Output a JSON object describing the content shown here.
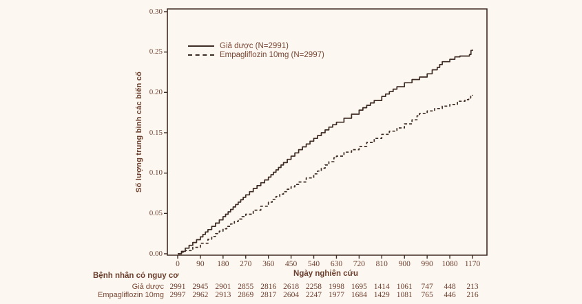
{
  "colors": {
    "background": "#fcf8f1",
    "curve": "#3e2b23",
    "axis": "#3e2b23",
    "text": "#7a4735",
    "bold_text": "#6b3d2c"
  },
  "legend": {
    "items": [
      {
        "label": "Giả dược (N=2991)",
        "style": "solid"
      },
      {
        "label": "Empagliflozin 10mg (N=2997)",
        "style": "dashed"
      }
    ]
  },
  "chart_data": {
    "type": "line",
    "title": "",
    "xlabel": "Ngày nghiên cứu",
    "ylabel": "Số lượng trung bình các biến cố",
    "xlim": [
      0,
      1170
    ],
    "ylim": [
      0,
      0.3
    ],
    "xticks": [
      0,
      90,
      180,
      270,
      360,
      450,
      540,
      630,
      720,
      810,
      900,
      990,
      1080,
      1170
    ],
    "ytick_labels": [
      "0.00",
      "0.05",
      "0.10",
      "0.15",
      "0.20",
      "0.25",
      "0.30"
    ],
    "grid": false,
    "legend_position": "inside-top-left",
    "series": [
      {
        "name": "Giả dược (N=2991)",
        "style": "solid",
        "points": [
          [
            0,
            0
          ],
          [
            15,
            0.003
          ],
          [
            30,
            0.007
          ],
          [
            60,
            0.014
          ],
          [
            90,
            0.021
          ],
          [
            120,
            0.03
          ],
          [
            150,
            0.038
          ],
          [
            180,
            0.046
          ],
          [
            210,
            0.055
          ],
          [
            240,
            0.064
          ],
          [
            270,
            0.073
          ],
          [
            300,
            0.081
          ],
          [
            330,
            0.088
          ],
          [
            360,
            0.095
          ],
          [
            390,
            0.104
          ],
          [
            420,
            0.113
          ],
          [
            450,
            0.121
          ],
          [
            480,
            0.129
          ],
          [
            510,
            0.136
          ],
          [
            540,
            0.143
          ],
          [
            570,
            0.15
          ],
          [
            600,
            0.157
          ],
          [
            630,
            0.163
          ],
          [
            660,
            0.168
          ],
          [
            690,
            0.173
          ],
          [
            720,
            0.178
          ],
          [
            750,
            0.184
          ],
          [
            780,
            0.19
          ],
          [
            810,
            0.195
          ],
          [
            840,
            0.201
          ],
          [
            870,
            0.207
          ],
          [
            900,
            0.212
          ],
          [
            930,
            0.216
          ],
          [
            960,
            0.219
          ],
          [
            990,
            0.223
          ],
          [
            1010,
            0.228
          ],
          [
            1030,
            0.231
          ],
          [
            1050,
            0.238
          ],
          [
            1080,
            0.241
          ],
          [
            1100,
            0.244
          ],
          [
            1120,
            0.245
          ],
          [
            1145,
            0.245
          ],
          [
            1158,
            0.247
          ],
          [
            1164,
            0.252
          ],
          [
            1170,
            0.253
          ]
        ]
      },
      {
        "name": "Empagliflozin 10mg (N=2997)",
        "style": "dashed",
        "points": [
          [
            0,
            0
          ],
          [
            15,
            0.002
          ],
          [
            30,
            0.004
          ],
          [
            60,
            0.008
          ],
          [
            90,
            0.013
          ],
          [
            120,
            0.018
          ],
          [
            150,
            0.025
          ],
          [
            180,
            0.031
          ],
          [
            210,
            0.037
          ],
          [
            240,
            0.043
          ],
          [
            270,
            0.049
          ],
          [
            300,
            0.054
          ],
          [
            330,
            0.059
          ],
          [
            360,
            0.064
          ],
          [
            390,
            0.071
          ],
          [
            420,
            0.077
          ],
          [
            450,
            0.083
          ],
          [
            480,
            0.089
          ],
          [
            510,
            0.094
          ],
          [
            540,
            0.099
          ],
          [
            570,
            0.106
          ],
          [
            600,
            0.114
          ],
          [
            620,
            0.119
          ],
          [
            630,
            0.121
          ],
          [
            660,
            0.126
          ],
          [
            690,
            0.129
          ],
          [
            720,
            0.133
          ],
          [
            750,
            0.138
          ],
          [
            780,
            0.143
          ],
          [
            810,
            0.148
          ],
          [
            840,
            0.152
          ],
          [
            870,
            0.156
          ],
          [
            900,
            0.161
          ],
          [
            930,
            0.166
          ],
          [
            950,
            0.171
          ],
          [
            960,
            0.174
          ],
          [
            990,
            0.177
          ],
          [
            1020,
            0.18
          ],
          [
            1050,
            0.183
          ],
          [
            1080,
            0.185
          ],
          [
            1110,
            0.189
          ],
          [
            1140,
            0.191
          ],
          [
            1155,
            0.193
          ],
          [
            1163,
            0.196
          ],
          [
            1170,
            0.197
          ]
        ]
      }
    ]
  },
  "risk_table": {
    "header": "Bệnh nhân có nguy cơ",
    "rows": [
      {
        "label": "Giả dược",
        "values": [
          2991,
          2945,
          2901,
          2855,
          2816,
          2618,
          2258,
          1998,
          1695,
          1414,
          1061,
          747,
          448,
          213
        ]
      },
      {
        "label": "Empagliflozin 10mg",
        "values": [
          2997,
          2962,
          2913,
          2869,
          2817,
          2604,
          2247,
          1977,
          1684,
          1429,
          1081,
          765,
          446,
          216
        ]
      }
    ]
  }
}
